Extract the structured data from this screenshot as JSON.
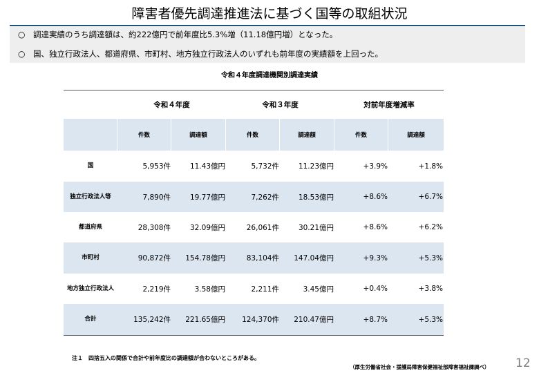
{
  "title": "障害者優先調達推進法に基づく国等の取組状況",
  "summary": [
    {
      "bullet": "○",
      "text": "調達実績のうち調達額は、約222億円で前年度比5.3%増（11.18億円増）となった。"
    },
    {
      "bullet": "○",
      "text": "国、独立行政法人、都道府県、市町村、地方独立行政法人のいずれも前年度の実績額を上回った。"
    }
  ],
  "table": {
    "title": "令和４年度調達機関別調達実績",
    "groups": [
      "令和４年度",
      "令和３年度",
      "対前年度増減率"
    ],
    "subheaders": [
      "件数",
      "調達額",
      "件数",
      "調達額",
      "件数",
      "調達額"
    ],
    "rows": [
      {
        "label": "国",
        "values": [
          "5,953件",
          "11.43億円",
          "5,732件",
          "11.23億円",
          "+3.9%",
          "+1.8%"
        ]
      },
      {
        "label": "独立行政法人等",
        "values": [
          "7,890件",
          "19.77億円",
          "7,262件",
          "18.53億円",
          "+8.6%",
          "+6.7%"
        ]
      },
      {
        "label": "都道府県",
        "values": [
          "28,308件",
          "32.09億円",
          "26,061件",
          "30.21億円",
          "+8.6%",
          "+6.2%"
        ]
      },
      {
        "label": "市町村",
        "values": [
          "90,872件",
          "154.78億円",
          "83,104件",
          "147.04億円",
          "+9.3%",
          "+5.3%"
        ]
      },
      {
        "label": "地方独立行政法人",
        "values": [
          "2,219件",
          "3.58億円",
          "2,211件",
          "3.45億円",
          "+0.4%",
          "+3.8%"
        ]
      },
      {
        "label": "合計",
        "values": [
          "135,242件",
          "221.65億円",
          "124,370件",
          "210.47億円",
          "+8.7%",
          "+5.3%"
        ]
      }
    ]
  },
  "note": "注１　四捨五入の関係で合計や前年度比の調達額が合わないところがある。",
  "source": "（厚生労働省社会・援護局障害保健福祉部障害福祉課調べ）",
  "page_number": "12",
  "colors": {
    "title_rule": "#1f4e79",
    "summary_bg": "#eeeeee",
    "header_shade": "#dce6f1"
  }
}
